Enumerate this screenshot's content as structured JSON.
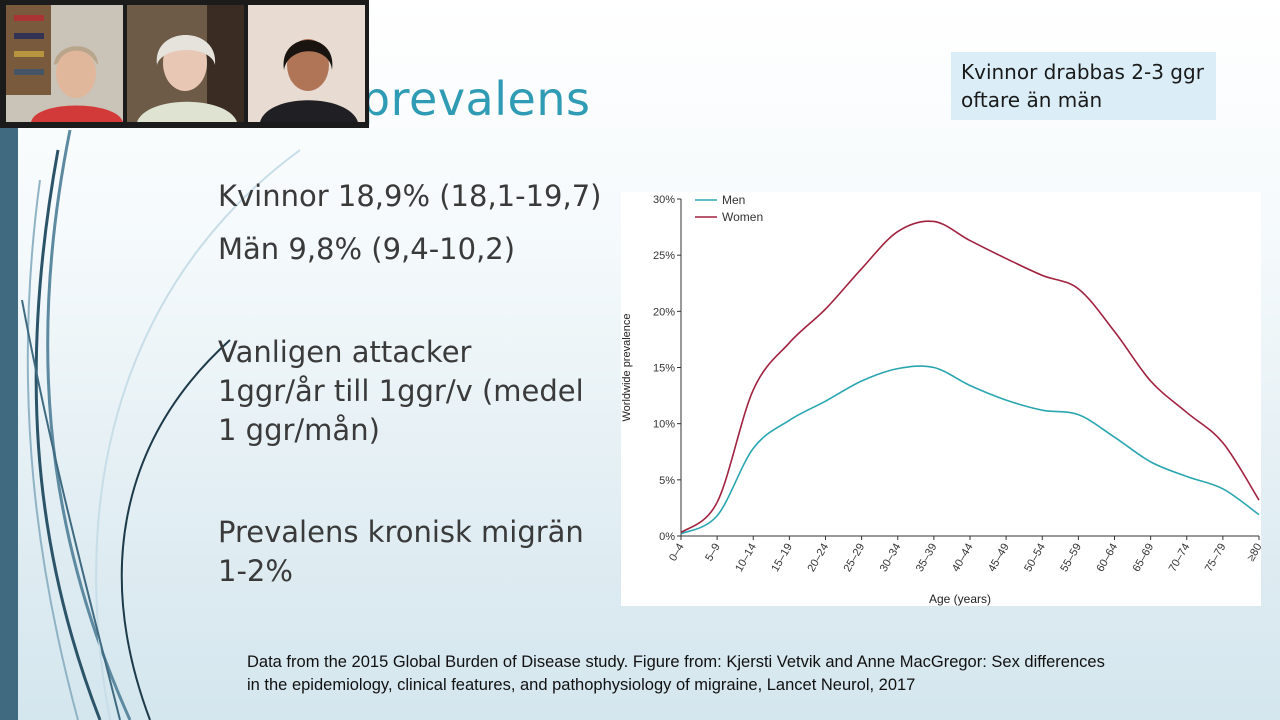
{
  "slide": {
    "title": "Migränprevalens",
    "callout": "Kvinnor drabbas 2-3 ggr oftare än män",
    "lines": [
      "Kvinnor 18,9% (18,1-19,7)",
      "Män 9,8% (9,4-10,2)",
      "Vanligen attacker",
      "1ggr/år till 1ggr/v (medel",
      "1 ggr/mån)",
      "Prevalens kronisk migrän",
      "1-2%"
    ],
    "citation_line1": "Data from the 2015 Global Burden of Disease study. Figure from: Kjersti Vetvik and Anne MacGregor: Sex differences",
    "citation_line2": "in the epidemiology, clinical features, and pathophysiology of migraine, Lancet Neurol, 2017"
  },
  "colors": {
    "title": "#2f9bb5",
    "men": "#2aa6b0",
    "women": "#a0223e",
    "callout_bg": "#dbeef7",
    "accent_bar": "#3f6a80"
  },
  "video_participants": [
    {
      "name": "participant-1"
    },
    {
      "name": "participant-2"
    },
    {
      "name": "participant-3"
    }
  ],
  "chart_data": {
    "type": "line",
    "categories": [
      "0–4",
      "5–9",
      "10–14",
      "15–19",
      "20–24",
      "25–29",
      "30–34",
      "35–39",
      "40–44",
      "45–49",
      "50–54",
      "55–59",
      "60–64",
      "65–69",
      "70–74",
      "75–79",
      "≥80"
    ],
    "series": [
      {
        "name": "Men",
        "values": [
          0.2,
          1.8,
          7.8,
          10.3,
          12.0,
          13.8,
          14.9,
          15.0,
          13.4,
          12.1,
          11.2,
          10.8,
          8.8,
          6.6,
          5.3,
          4.2,
          1.9
        ],
        "color": "#2aa6b0"
      },
      {
        "name": "Women",
        "values": [
          0.3,
          3.0,
          13.0,
          17.2,
          20.2,
          23.8,
          27.1,
          28.0,
          26.3,
          24.7,
          23.2,
          22.0,
          18.2,
          13.8,
          11.0,
          8.3,
          3.2
        ],
        "color": "#a0223e"
      }
    ],
    "yticks": [
      "0%",
      "5%",
      "10%",
      "15%",
      "20%",
      "25%",
      "30%"
    ],
    "ylim": [
      0,
      30
    ],
    "xlabel": "Age (years)",
    "ylabel": "Worldwide prevalence",
    "legend": "top-left",
    "grid": false
  }
}
